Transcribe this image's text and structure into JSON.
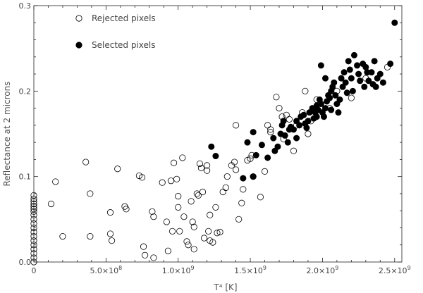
{
  "chart_data": {
    "type": "scatter",
    "xlabel": "T⁴ [K]",
    "ylabel": "Reflectance at 2 microns",
    "xlim": [
      0,
      2550000000.0
    ],
    "ylim": [
      0,
      0.3
    ],
    "x_ticks": [
      {
        "value": 0,
        "mantissa": "0",
        "exp": ""
      },
      {
        "value": 500000000,
        "mantissa": "5.0×10",
        "exp": "8"
      },
      {
        "value": 1000000000,
        "mantissa": "1.0×10",
        "exp": "9"
      },
      {
        "value": 1500000000,
        "mantissa": "1.5×10",
        "exp": "9"
      },
      {
        "value": 2000000000,
        "mantissa": "2.0×10",
        "exp": "9"
      },
      {
        "value": 2500000000,
        "mantissa": "2.5×10",
        "exp": "9"
      }
    ],
    "y_ticks": [
      {
        "value": 0.0,
        "label": "0.0"
      },
      {
        "value": 0.1,
        "label": "0.1"
      },
      {
        "value": 0.2,
        "label": "0.2"
      },
      {
        "value": 0.3,
        "label": "0.3"
      }
    ],
    "legend": {
      "position": "top-left"
    },
    "series": [
      {
        "name": "Rejected pixels",
        "marker": "open-circle",
        "points": [
          [
            0,
            0.078
          ],
          [
            0,
            0.074
          ],
          [
            0,
            0.071
          ],
          [
            0,
            0.068
          ],
          [
            0,
            0.065
          ],
          [
            0,
            0.062
          ],
          [
            0,
            0.059
          ],
          [
            0,
            0.055
          ],
          [
            0,
            0.05
          ],
          [
            0,
            0.045
          ],
          [
            0,
            0.04
          ],
          [
            0,
            0.035
          ],
          [
            0,
            0.03
          ],
          [
            0,
            0.025
          ],
          [
            0,
            0.02
          ],
          [
            0,
            0.015
          ],
          [
            0,
            0.01
          ],
          [
            0,
            0.005
          ],
          [
            0,
            0.0
          ],
          [
            150000000.0,
            0.094
          ],
          [
            120000000.0,
            0.068
          ],
          [
            200000000.0,
            0.03
          ],
          [
            360000000.0,
            0.117
          ],
          [
            390000000.0,
            0.08
          ],
          [
            390000000.0,
            0.03
          ],
          [
            530000000.0,
            0.058
          ],
          [
            530000000.0,
            0.033
          ],
          [
            540000000.0,
            0.025
          ],
          [
            580000000.0,
            0.109
          ],
          [
            630000000.0,
            0.065
          ],
          [
            640000000.0,
            0.062
          ],
          [
            730000000.0,
            0.101
          ],
          [
            750000000.0,
            0.099
          ],
          [
            760000000.0,
            0.018
          ],
          [
            770000000.0,
            0.008
          ],
          [
            820000000.0,
            0.059
          ],
          [
            830000000.0,
            0.053
          ],
          [
            830000000.0,
            0.005
          ],
          [
            890000000.0,
            0.093
          ],
          [
            920000000.0,
            0.047
          ],
          [
            930000000.0,
            0.013
          ],
          [
            950000000.0,
            0.095
          ],
          [
            970000000.0,
            0.116
          ],
          [
            960000000.0,
            0.036
          ],
          [
            990000000.0,
            0.097
          ],
          [
            1000000000.0,
            0.077
          ],
          [
            1000000000.0,
            0.064
          ],
          [
            1010000000.0,
            0.036
          ],
          [
            1030000000.0,
            0.122
          ],
          [
            1040000000.0,
            0.053
          ],
          [
            1060000000.0,
            0.024
          ],
          [
            1070000000.0,
            0.02
          ],
          [
            1090000000.0,
            0.071
          ],
          [
            1100000000.0,
            0.047
          ],
          [
            1110000000.0,
            0.041
          ],
          [
            1110000000.0,
            0.015
          ],
          [
            1130000000.0,
            0.08
          ],
          [
            1140000000.0,
            0.078
          ],
          [
            1150000000.0,
            0.115
          ],
          [
            1160000000.0,
            0.11
          ],
          [
            1170000000.0,
            0.082
          ],
          [
            1180000000.0,
            0.028
          ],
          [
            1200000000.0,
            0.113
          ],
          [
            1200000000.0,
            0.107
          ],
          [
            1210000000.0,
            0.036
          ],
          [
            1220000000.0,
            0.055
          ],
          [
            1220000000.0,
            0.025
          ],
          [
            1240000000.0,
            0.023
          ],
          [
            1260000000.0,
            0.064
          ],
          [
            1270000000.0,
            0.034
          ],
          [
            1290000000.0,
            0.035
          ],
          [
            1310000000.0,
            0.082
          ],
          [
            1330000000.0,
            0.087
          ],
          [
            1340000000.0,
            0.1
          ],
          [
            1370000000.0,
            0.113
          ],
          [
            1390000000.0,
            0.117
          ],
          [
            1400000000.0,
            0.108
          ],
          [
            1400000000.0,
            0.16
          ],
          [
            1420000000.0,
            0.05
          ],
          [
            1440000000.0,
            0.069
          ],
          [
            1450000000.0,
            0.085
          ],
          [
            1480000000.0,
            0.119
          ],
          [
            1500000000.0,
            0.121
          ],
          [
            1510000000.0,
            0.125
          ],
          [
            1520000000.0,
            0.1
          ],
          [
            1570000000.0,
            0.076
          ],
          [
            1600000000.0,
            0.106
          ],
          [
            1620000000.0,
            0.16
          ],
          [
            1640000000.0,
            0.152
          ],
          [
            1640000000.0,
            0.155
          ],
          [
            1680000000.0,
            0.193
          ],
          [
            1700000000.0,
            0.18
          ],
          [
            1720000000.0,
            0.17
          ],
          [
            1730000000.0,
            0.144
          ],
          [
            1750000000.0,
            0.172
          ],
          [
            1770000000.0,
            0.167
          ],
          [
            1800000000.0,
            0.13
          ],
          [
            1820000000.0,
            0.16
          ],
          [
            1860000000.0,
            0.175
          ],
          [
            1880000000.0,
            0.2
          ],
          [
            1900000000.0,
            0.15
          ],
          [
            1920000000.0,
            0.165
          ],
          [
            1960000000.0,
            0.19
          ],
          [
            2050000000.0,
            0.18
          ],
          [
            2100000000.0,
            0.2
          ],
          [
            2200000000.0,
            0.192
          ],
          [
            2300000000.0,
            0.215
          ],
          [
            2450000000.0,
            0.228
          ]
        ]
      },
      {
        "name": "Selected pixels",
        "marker": "filled-circle",
        "points": [
          [
            1230000000.0,
            0.135
          ],
          [
            1260000000.0,
            0.124
          ],
          [
            1480000000.0,
            0.14
          ],
          [
            1520000000.0,
            0.152
          ],
          [
            1450000000.0,
            0.098
          ],
          [
            1520000000.0,
            0.1
          ],
          [
            1540000000.0,
            0.125
          ],
          [
            1580000000.0,
            0.137
          ],
          [
            1620000000.0,
            0.122
          ],
          [
            1660000000.0,
            0.145
          ],
          [
            1670000000.0,
            0.13
          ],
          [
            1690000000.0,
            0.135
          ],
          [
            1710000000.0,
            0.15
          ],
          [
            1720000000.0,
            0.16
          ],
          [
            1730000000.0,
            0.165
          ],
          [
            1740000000.0,
            0.148
          ],
          [
            1760000000.0,
            0.14
          ],
          [
            1770000000.0,
            0.155
          ],
          [
            1780000000.0,
            0.158
          ],
          [
            1800000000.0,
            0.155
          ],
          [
            1820000000.0,
            0.165
          ],
          [
            1840000000.0,
            0.16
          ],
          [
            1850000000.0,
            0.17
          ],
          [
            1870000000.0,
            0.172
          ],
          [
            1880000000.0,
            0.162
          ],
          [
            1900000000.0,
            0.165
          ],
          [
            1910000000.0,
            0.175
          ],
          [
            1930000000.0,
            0.18
          ],
          [
            1940000000.0,
            0.168
          ],
          [
            1950000000.0,
            0.175
          ],
          [
            1960000000.0,
            0.183
          ],
          [
            1970000000.0,
            0.178
          ],
          [
            1980000000.0,
            0.19
          ],
          [
            1990000000.0,
            0.185
          ],
          [
            2000000000.0,
            0.175
          ],
          [
            2010000000.0,
            0.17
          ],
          [
            2020000000.0,
            0.18
          ],
          [
            2030000000.0,
            0.188
          ],
          [
            2040000000.0,
            0.195
          ],
          [
            2050000000.0,
            0.192
          ],
          [
            2060000000.0,
            0.2
          ],
          [
            2070000000.0,
            0.205
          ],
          [
            2080000000.0,
            0.21
          ],
          [
            2090000000.0,
            0.195
          ],
          [
            2100000000.0,
            0.185
          ],
          [
            2110000000.0,
            0.175
          ],
          [
            2120000000.0,
            0.19
          ],
          [
            2130000000.0,
            0.215
          ],
          [
            2140000000.0,
            0.205
          ],
          [
            2150000000.0,
            0.222
          ],
          [
            2160000000.0,
            0.21
          ],
          [
            2170000000.0,
            0.198
          ],
          [
            2180000000.0,
            0.235
          ],
          [
            2190000000.0,
            0.225
          ],
          [
            2200000000.0,
            0.215
          ],
          [
            2210000000.0,
            0.2
          ],
          [
            2220000000.0,
            0.242
          ],
          [
            2240000000.0,
            0.23
          ],
          [
            2250000000.0,
            0.22
          ],
          [
            2260000000.0,
            0.212
          ],
          [
            2280000000.0,
            0.232
          ],
          [
            2290000000.0,
            0.205
          ],
          [
            2300000000.0,
            0.228
          ],
          [
            2310000000.0,
            0.222
          ],
          [
            2320000000.0,
            0.212
          ],
          [
            2340000000.0,
            0.222
          ],
          [
            2350000000.0,
            0.208
          ],
          [
            2360000000.0,
            0.235
          ],
          [
            2370000000.0,
            0.205
          ],
          [
            2380000000.0,
            0.215
          ],
          [
            2400000000.0,
            0.22
          ],
          [
            2420000000.0,
            0.21
          ],
          [
            2470000000.0,
            0.232
          ],
          [
            2500000000.0,
            0.28
          ],
          [
            1960000000.0,
            0.17
          ],
          [
            1990000000.0,
            0.23
          ],
          [
            2020000000.0,
            0.215
          ],
          [
            2060000000.0,
            0.178
          ],
          [
            1890000000.0,
            0.157
          ],
          [
            1820000000.0,
            0.145
          ]
        ]
      }
    ]
  }
}
